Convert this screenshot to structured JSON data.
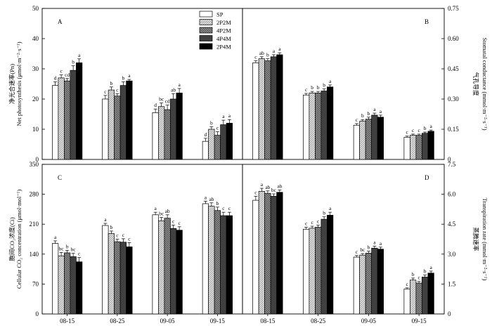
{
  "legend": [
    "SP",
    "2P2M",
    "4P2M",
    "4P4M",
    "2P4M"
  ],
  "series_styles": [
    {
      "name": "SP",
      "fill": "#ffffff",
      "pattern": "none"
    },
    {
      "name": "2P2M",
      "fill": "#d6d6d6",
      "pattern": "hatch-light"
    },
    {
      "name": "4P2M",
      "fill": "#9a9a9a",
      "pattern": "hatch-dense"
    },
    {
      "name": "4P4M",
      "fill": "#404040",
      "pattern": "none"
    },
    {
      "name": "2P4M",
      "fill": "#000000",
      "pattern": "none"
    }
  ],
  "chart_data": [
    {
      "type": "bar",
      "panel": "A",
      "categories": [
        "08-15",
        "08-25",
        "09-05",
        "09-15"
      ],
      "ylabel_zh": "净光合速率(Pn)",
      "ylabel_en": "Net photosynthesis (μmol·m⁻²·s⁻¹)",
      "ylim": [
        0,
        50
      ],
      "yticks": [
        "0",
        "10",
        "20",
        "30",
        "40",
        "50"
      ],
      "series": [
        {
          "name": "SP",
          "values": [
            24.5,
            20.0,
            15.5,
            6.0
          ],
          "errors": [
            1.2,
            1.2,
            1.2,
            1.0
          ],
          "labels": [
            "d",
            "c",
            "d",
            "d"
          ]
        },
        {
          "name": "2P2M",
          "values": [
            27.0,
            23.0,
            17.5,
            10.0
          ],
          "errors": [
            1.0,
            1.0,
            1.2,
            0.8
          ],
          "labels": [
            "c",
            "b",
            "bc",
            "b"
          ]
        },
        {
          "name": "4P2M",
          "values": [
            26.0,
            21.0,
            16.5,
            8.0
          ],
          "errors": [
            0.8,
            0.8,
            1.5,
            1.2
          ],
          "labels": [
            "cd",
            "c",
            "cd",
            "c"
          ]
        },
        {
          "name": "4P4M",
          "values": [
            29.5,
            24.5,
            20.0,
            11.5
          ],
          "errors": [
            1.5,
            1.2,
            1.8,
            1.5
          ],
          "labels": [
            "b",
            "b",
            "ab",
            "a"
          ]
        },
        {
          "name": "2P4M",
          "values": [
            32.0,
            26.0,
            22.0,
            12.0
          ],
          "errors": [
            1.3,
            0.5,
            1.5,
            1.2
          ],
          "labels": [
            "a",
            "a",
            "a",
            "a"
          ]
        }
      ]
    },
    {
      "type": "bar",
      "panel": "B",
      "categories": [
        "08-15",
        "08-25",
        "09-05",
        "09-15"
      ],
      "ylabel_zh": "气孔导度",
      "ylabel_en": "Stomatal conductance (mmol·m⁻²·s⁻¹)",
      "ylim": [
        0,
        0.75
      ],
      "yticks": [
        "0",
        "0.15",
        "0.30",
        "0.45",
        "0.60",
        "0.75"
      ],
      "series": [
        {
          "name": "SP",
          "values": [
            0.48,
            0.32,
            0.17,
            0.11
          ],
          "errors": [
            0.01,
            0.008,
            0.008,
            0.006
          ],
          "labels": [
            "c",
            "c",
            "c",
            "c"
          ]
        },
        {
          "name": "2P2M",
          "values": [
            0.5,
            0.33,
            0.19,
            0.12
          ],
          "errors": [
            0.01,
            0.008,
            0.008,
            0.006
          ],
          "labels": [
            "ab",
            "b",
            "b",
            "c"
          ]
        },
        {
          "name": "4P2M",
          "values": [
            0.49,
            0.33,
            0.2,
            0.12
          ],
          "errors": [
            0.01,
            0.008,
            0.01,
            0.006
          ],
          "labels": [
            "b",
            "b",
            "b",
            "c"
          ]
        },
        {
          "name": "4P4M",
          "values": [
            0.51,
            0.34,
            0.22,
            0.13
          ],
          "errors": [
            0.01,
            0.01,
            0.01,
            0.006
          ],
          "labels": [
            "a",
            "b",
            "a",
            "b"
          ]
        },
        {
          "name": "2P4M",
          "values": [
            0.52,
            0.36,
            0.21,
            0.14
          ],
          "errors": [
            0.01,
            0.01,
            0.01,
            0.006
          ],
          "labels": [
            "a",
            "a",
            "a",
            "a"
          ]
        }
      ]
    },
    {
      "type": "bar",
      "panel": "C",
      "categories": [
        "08-15",
        "08-25",
        "09-05",
        "09-15"
      ],
      "ylabel_zh": "胞间CO₂浓度(Ci)",
      "ylabel_en": "Cellular CO₂ concentration (μmol·mol⁻¹)",
      "ylim": [
        0,
        350
      ],
      "yticks": [
        "0",
        "70",
        "140",
        "210",
        "280",
        "350"
      ],
      "series": [
        {
          "name": "SP",
          "values": [
            165,
            207,
            232,
            258
          ],
          "errors": [
            6,
            5,
            6,
            6
          ],
          "labels": [
            "a",
            "a",
            "a",
            "a"
          ]
        },
        {
          "name": "2P2M",
          "values": [
            136,
            188,
            218,
            252
          ],
          "errors": [
            8,
            6,
            8,
            8
          ],
          "labels": [
            "bc",
            "b",
            "bc",
            "ab"
          ]
        },
        {
          "name": "4P2M",
          "values": [
            143,
            169,
            224,
            242
          ],
          "errors": [
            6,
            6,
            8,
            8
          ],
          "labels": [
            "b",
            "c",
            "ab",
            "b"
          ]
        },
        {
          "name": "4P4M",
          "values": [
            134,
            168,
            200,
            230
          ],
          "errors": [
            8,
            8,
            8,
            8
          ],
          "labels": [
            "bc",
            "c",
            "c",
            "c"
          ]
        },
        {
          "name": "2P4M",
          "values": [
            122,
            157,
            196,
            230
          ],
          "errors": [
            10,
            10,
            8,
            8
          ],
          "labels": [
            "c",
            "c",
            "c",
            "c"
          ]
        }
      ]
    },
    {
      "type": "bar",
      "panel": "D",
      "categories": [
        "08-15",
        "08-25",
        "09-05",
        "09-15"
      ],
      "ylabel_zh": "蒸腾速率",
      "ylabel_en": "Transpiration rate (mmol·m⁻²·s⁻¹)",
      "ylim": [
        0,
        7.5
      ],
      "yticks": [
        "0",
        "1.5",
        "3.0",
        "4.5",
        "6.0",
        "7.5"
      ],
      "series": [
        {
          "name": "SP",
          "values": [
            5.7,
            4.25,
            2.85,
            1.25
          ],
          "errors": [
            0.2,
            0.1,
            0.08,
            0.06
          ],
          "labels": [
            "c",
            "c",
            "c",
            "c"
          ]
        },
        {
          "name": "2P2M",
          "values": [
            6.15,
            4.3,
            2.95,
            1.7
          ],
          "errors": [
            0.15,
            0.1,
            0.08,
            0.1
          ],
          "labels": [
            "a",
            "c",
            "bc",
            "b"
          ]
        },
        {
          "name": "4P2M",
          "values": [
            6.05,
            4.35,
            3.05,
            1.55
          ],
          "errors": [
            0.12,
            0.1,
            0.1,
            0.08
          ],
          "labels": [
            "ab",
            "c",
            "b",
            "c"
          ]
        },
        {
          "name": "4P4M",
          "values": [
            5.9,
            4.75,
            3.3,
            1.85
          ],
          "errors": [
            0.12,
            0.12,
            0.1,
            0.1
          ],
          "labels": [
            "bc",
            "b",
            "a",
            "b"
          ]
        },
        {
          "name": "2P4M",
          "values": [
            6.1,
            4.95,
            3.25,
            2.05
          ],
          "errors": [
            0.12,
            0.15,
            0.1,
            0.1
          ],
          "labels": [
            "ab",
            "a",
            "a",
            "a"
          ]
        }
      ]
    }
  ]
}
